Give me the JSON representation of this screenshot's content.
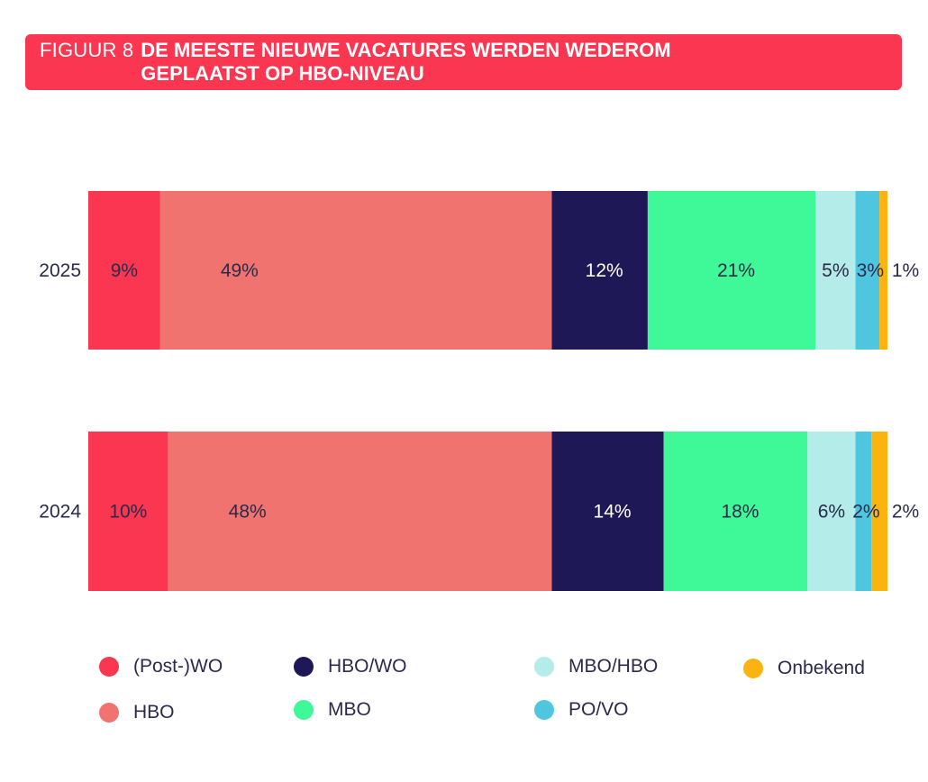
{
  "title": {
    "prefix": "FIGUUR 8",
    "main": "DE MEESTE NIEUWE VACATURES WERDEN WEDEROM GEPLAATST OP HBO-NIVEAU"
  },
  "chart_data": {
    "type": "bar",
    "orientation": "horizontal",
    "stacked": true,
    "categories": [
      "2025",
      "2024"
    ],
    "series": [
      {
        "name": "(Post-)WO",
        "color": "#fb3650",
        "values": [
          9,
          10
        ],
        "labels": [
          "9%",
          "10%"
        ],
        "label_color": "#2a2a4a"
      },
      {
        "name": "HBO",
        "color": "#f07370",
        "values": [
          49,
          48
        ],
        "labels": [
          "49%",
          "48%"
        ],
        "label_color": "#2a2a4a"
      },
      {
        "name": "HBO/WO",
        "color": "#1e1856",
        "values": [
          12,
          14
        ],
        "labels": [
          "12%",
          "14%"
        ],
        "label_color": "#ffffff"
      },
      {
        "name": "MBO",
        "color": "#3ff898",
        "values": [
          21,
          18
        ],
        "labels": [
          "21%",
          "18%"
        ],
        "label_color": "#2a2a4a"
      },
      {
        "name": "MBO/HBO",
        "color": "#b3ece8",
        "values": [
          5,
          6
        ],
        "labels": [
          "5%",
          "6%"
        ],
        "label_color": "#2a2a4a"
      },
      {
        "name": "PO/VO",
        "color": "#4fc6df",
        "values": [
          3,
          2
        ],
        "labels": [
          "3%",
          "2%"
        ],
        "label_color": "#2a2a4a"
      },
      {
        "name": "Onbekend",
        "color": "#fbb40f",
        "values": [
          1,
          2
        ],
        "labels": [
          "1%",
          "2%"
        ],
        "label_color": "#2a2a4a"
      }
    ],
    "xlim": [
      0,
      100
    ],
    "grid": false,
    "legend_position": "bottom"
  },
  "legend": [
    {
      "label": "(Post-)WO",
      "color": "#fb3650"
    },
    {
      "label": "HBO",
      "color": "#f07370"
    },
    {
      "label": "HBO/WO",
      "color": "#1e1856"
    },
    {
      "label": "MBO",
      "color": "#3ff898"
    },
    {
      "label": "MBO/HBO",
      "color": "#b3ece8"
    },
    {
      "label": "PO/VO",
      "color": "#4fc6df"
    },
    {
      "label": "Onbekend",
      "color": "#fbb40f"
    }
  ]
}
